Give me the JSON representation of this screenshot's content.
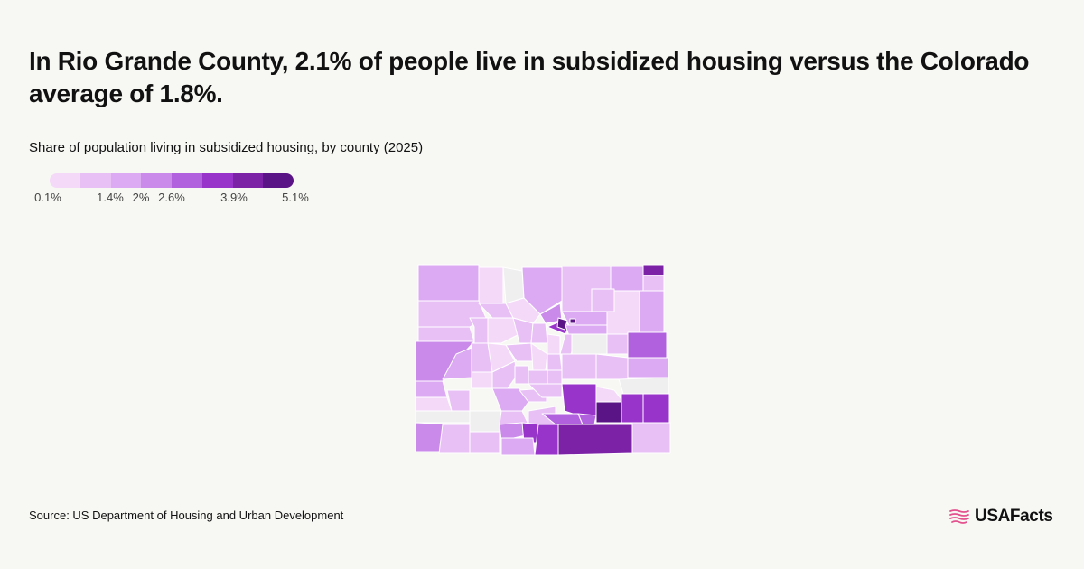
{
  "header": {
    "title": "In Rio Grande County, 2.1% of people live in subsidized housing versus the Colorado average of 1.8%.",
    "subtitle": "Share of population living in subsidized housing, by county (2025)"
  },
  "legend": {
    "colors": [
      "#f4d9f8",
      "#e8c0f5",
      "#dcaaf2",
      "#c98ae9",
      "#b161dd",
      "#9834c9",
      "#7b22a6",
      "#5a1485"
    ],
    "ticks": [
      {
        "label": "0.1%",
        "value": 0.1
      },
      {
        "label": "1.4%",
        "value": 1.4
      },
      {
        "label": "2%",
        "value": 2.0
      },
      {
        "label": "2.6%",
        "value": 2.6
      },
      {
        "label": "3.9%",
        "value": 3.9
      },
      {
        "label": "5.1%",
        "value": 5.1
      }
    ]
  },
  "map": {
    "state": "Colorado",
    "no_data_color": "#efefef",
    "border_color": "#ffffff"
  },
  "footer": {
    "source": "Source: US Department of Housing and Urban Development",
    "brand": "USAFacts",
    "brand_icon": "us-flag-map-icon",
    "brand_color": "#e3528f"
  }
}
